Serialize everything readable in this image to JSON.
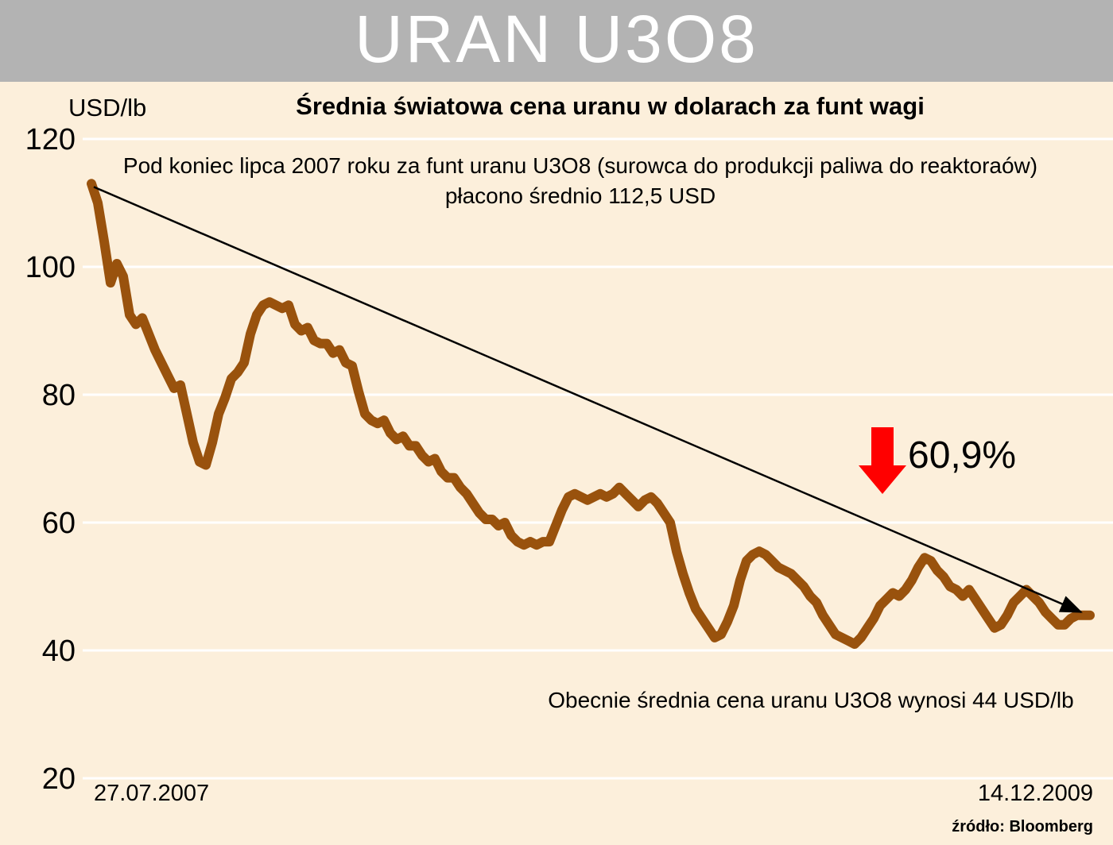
{
  "header": {
    "title": "URAN U3O8"
  },
  "chart": {
    "unit_label": "USD/lb",
    "title": "Średnia światowa cena uranu w dolarach za funt wagi",
    "annotation_line1": "Pod koniec lipca 2007 roku za funt uranu U3O8 (surowca do produkcji paliwa do reaktoraów)",
    "annotation_line2": "płacono średnio 112,5 USD",
    "drop_label": "60,9%",
    "current_label": "Obecnie średnia cena uranu U3O8 wynosi 44 USD/lb",
    "x_start_label": "27.07.2007",
    "x_end_label": "14.12.2009",
    "source": "źródło: Bloomberg"
  },
  "colors": {
    "background": "#fcefdb",
    "header_bg": "#b3b3b3",
    "header_text": "#ffffff",
    "line": "#99520d",
    "gridline": "#ffffff",
    "trend_arrow": "#000000",
    "drop_arrow": "#ff0000",
    "text": "#000000"
  },
  "chart_data": {
    "type": "line",
    "title": "Średnia światowa cena uranu w dolarach za funt wagi",
    "ylabel": "USD/lb",
    "x_start": "27.07.2007",
    "x_end": "14.12.2009",
    "ylim": [
      20,
      120
    ],
    "yticks": [
      120,
      100,
      80,
      60,
      40,
      20
    ],
    "grid": "horizontal",
    "legend": "none",
    "start_value": 112.5,
    "end_value": 44,
    "decline_percent": "60,9%",
    "values": [
      113,
      110,
      104,
      97.5,
      100.5,
      98.5,
      92.5,
      91,
      92,
      89.5,
      87,
      85,
      83,
      81,
      81.5,
      77,
      72.5,
      69.5,
      69,
      72.5,
      77,
      79.5,
      82.5,
      83.5,
      85,
      89.5,
      92.5,
      94,
      94.5,
      94,
      93.5,
      94,
      91,
      90,
      90.5,
      88.5,
      88,
      88,
      86.5,
      87,
      85,
      84.5,
      80.5,
      77,
      76,
      75.5,
      76,
      74,
      73,
      73.5,
      72,
      72,
      70.5,
      69.5,
      70,
      68,
      67,
      67,
      65.5,
      64.5,
      63,
      61.5,
      60.5,
      60.5,
      59.5,
      60,
      58,
      57,
      56.5,
      57,
      56.5,
      57,
      57,
      59.5,
      62,
      64,
      64.5,
      64,
      63.5,
      64,
      64.5,
      64,
      64.5,
      65.5,
      64.5,
      63.5,
      62.5,
      63.5,
      64,
      63,
      61.5,
      60,
      55.5,
      52,
      49,
      46.5,
      45,
      43.5,
      42,
      42.5,
      44.5,
      47,
      51,
      54,
      55,
      55.5,
      55,
      54,
      53,
      52.5,
      52,
      51,
      50,
      48.5,
      47.5,
      45.5,
      44,
      42.5,
      42,
      41.5,
      41,
      42,
      43.5,
      45,
      47,
      48,
      49,
      48.5,
      49.5,
      51,
      53,
      54.5,
      54,
      52.5,
      51.5,
      50,
      49.5,
      48.5,
      49.5,
      48,
      46.5,
      45,
      43.5,
      44,
      45.5,
      47.5,
      48.5,
      49.5,
      48.5,
      47.5,
      46,
      45,
      44,
      44,
      45,
      45.5,
      45.5,
      45.5
    ]
  }
}
